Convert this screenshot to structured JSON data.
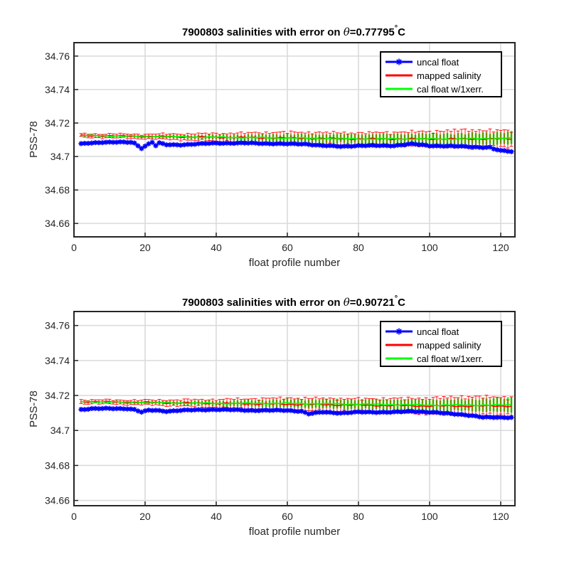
{
  "chart_data": [
    {
      "type": "line",
      "title_prefix": "7900803 salinities with error on ",
      "title_theta": "θ",
      "title_suffix": "=0.77795",
      "title_degree": "°",
      "title_unit": "C",
      "xlabel": "float profile number",
      "ylabel": "PSS-78",
      "xlim": [
        0,
        124
      ],
      "ylim": [
        34.652,
        34.768
      ],
      "xticks": [
        0,
        20,
        40,
        60,
        80,
        100,
        120
      ],
      "yticks": [
        34.66,
        34.68,
        34.7,
        34.72,
        34.74,
        34.76
      ],
      "ytick_labels": [
        "34.66",
        "34.68",
        "34.7",
        "34.72",
        "34.74",
        "34.76"
      ],
      "grid": true,
      "legend_position": "top-right",
      "series": [
        {
          "name": "uncal float",
          "color": "#0000ff",
          "marker": "asterisk",
          "x_range": [
            2,
            123
          ],
          "keypoints": [
            [
              2,
              34.7075
            ],
            [
              4,
              34.708
            ],
            [
              8,
              34.7085
            ],
            [
              12,
              34.7085
            ],
            [
              16,
              34.7085
            ],
            [
              17,
              34.708
            ],
            [
              19,
              34.705
            ],
            [
              21,
              34.7075
            ],
            [
              22,
              34.7085
            ],
            [
              23,
              34.7065
            ],
            [
              24,
              34.708
            ],
            [
              26,
              34.707
            ],
            [
              30,
              34.707
            ],
            [
              40,
              34.708
            ],
            [
              50,
              34.708
            ],
            [
              60,
              34.7075
            ],
            [
              65,
              34.7075
            ],
            [
              70,
              34.7065
            ],
            [
              75,
              34.706
            ],
            [
              80,
              34.7065
            ],
            [
              90,
              34.7065
            ],
            [
              95,
              34.7075
            ],
            [
              100,
              34.7065
            ],
            [
              110,
              34.706
            ],
            [
              115,
              34.7055
            ],
            [
              117,
              34.7055
            ],
            [
              118,
              34.7045
            ],
            [
              120,
              34.7035
            ],
            [
              123,
              34.703
            ]
          ]
        },
        {
          "name": "mapped salinity",
          "color": "#ff0000",
          "x_range": [
            2,
            123
          ],
          "keypoints": [
            [
              2,
              34.7125
            ],
            [
              20,
              34.712
            ],
            [
              40,
              34.7115
            ],
            [
              60,
              34.711
            ],
            [
              80,
              34.7105
            ],
            [
              95,
              34.7105
            ],
            [
              100,
              34.7105
            ],
            [
              110,
              34.7105
            ],
            [
              123,
              34.7105
            ]
          ],
          "error_keypoints": [
            [
              2,
              0.0012
            ],
            [
              20,
              0.0015
            ],
            [
              40,
              0.0025
            ],
            [
              60,
              0.004
            ],
            [
              80,
              0.004
            ],
            [
              100,
              0.005
            ],
            [
              110,
              0.006
            ],
            [
              123,
              0.0055
            ]
          ]
        },
        {
          "name": "cal float w/1xerr.",
          "color": "#00ff00",
          "x_range": [
            2,
            123
          ],
          "keypoints": [
            [
              2,
              34.7125
            ],
            [
              20,
              34.712
            ],
            [
              40,
              34.7115
            ],
            [
              60,
              34.711
            ],
            [
              80,
              34.7105
            ],
            [
              95,
              34.7105
            ],
            [
              100,
              34.7105
            ],
            [
              110,
              34.7105
            ],
            [
              123,
              34.711
            ]
          ],
          "error_keypoints": [
            [
              2,
              0.0005
            ],
            [
              20,
              0.0008
            ],
            [
              40,
              0.0015
            ],
            [
              60,
              0.0025
            ],
            [
              80,
              0.003
            ],
            [
              100,
              0.0035
            ],
            [
              110,
              0.0035
            ],
            [
              123,
              0.004
            ]
          ]
        }
      ]
    },
    {
      "type": "line",
      "title_prefix": "7900803 salinities with error on ",
      "title_theta": "θ",
      "title_suffix": "=0.90721",
      "title_degree": "°",
      "title_unit": "C",
      "xlabel": "float profile number",
      "ylabel": "PSS-78",
      "xlim": [
        0,
        124
      ],
      "ylim": [
        34.657,
        34.768
      ],
      "xticks": [
        0,
        20,
        40,
        60,
        80,
        100,
        120
      ],
      "yticks": [
        34.66,
        34.68,
        34.7,
        34.72,
        34.74,
        34.76
      ],
      "ytick_labels": [
        "34.66",
        "34.68",
        "34.7",
        "34.72",
        "34.74",
        "34.76"
      ],
      "grid": true,
      "legend_position": "top-right",
      "series": [
        {
          "name": "uncal float",
          "color": "#0000ff",
          "marker": "asterisk",
          "x_range": [
            2,
            123
          ],
          "keypoints": [
            [
              2,
              34.712
            ],
            [
              5,
              34.7125
            ],
            [
              10,
              34.7125
            ],
            [
              15,
              34.7125
            ],
            [
              17,
              34.712
            ],
            [
              19,
              34.7105
            ],
            [
              21,
              34.7115
            ],
            [
              23,
              34.7115
            ],
            [
              26,
              34.711
            ],
            [
              30,
              34.7115
            ],
            [
              40,
              34.712
            ],
            [
              50,
              34.7115
            ],
            [
              60,
              34.7115
            ],
            [
              64,
              34.711
            ],
            [
              66,
              34.7095
            ],
            [
              70,
              34.7105
            ],
            [
              75,
              34.71
            ],
            [
              80,
              34.7105
            ],
            [
              90,
              34.7105
            ],
            [
              95,
              34.711
            ],
            [
              100,
              34.7105
            ],
            [
              110,
              34.709
            ],
            [
              112,
              34.7085
            ],
            [
              115,
              34.7075
            ],
            [
              120,
              34.7075
            ],
            [
              123,
              34.7075
            ]
          ]
        },
        {
          "name": "mapped salinity",
          "color": "#ff0000",
          "x_range": [
            2,
            123
          ],
          "keypoints": [
            [
              2,
              34.7165
            ],
            [
              20,
              34.716
            ],
            [
              40,
              34.7155
            ],
            [
              60,
              34.715
            ],
            [
              80,
              34.7145
            ],
            [
              100,
              34.714
            ],
            [
              110,
              34.714
            ],
            [
              123,
              34.714
            ]
          ],
          "error_keypoints": [
            [
              2,
              0.0012
            ],
            [
              20,
              0.0015
            ],
            [
              40,
              0.0025
            ],
            [
              60,
              0.004
            ],
            [
              80,
              0.004
            ],
            [
              100,
              0.005
            ],
            [
              110,
              0.006
            ],
            [
              123,
              0.0055
            ]
          ]
        },
        {
          "name": "cal float w/1xerr.",
          "color": "#00ff00",
          "x_range": [
            2,
            123
          ],
          "keypoints": [
            [
              2,
              34.7165
            ],
            [
              20,
              34.716
            ],
            [
              40,
              34.7155
            ],
            [
              60,
              34.7155
            ],
            [
              80,
              34.715
            ],
            [
              100,
              34.7145
            ],
            [
              110,
              34.7145
            ],
            [
              123,
              34.7145
            ]
          ],
          "error_keypoints": [
            [
              2,
              0.0005
            ],
            [
              20,
              0.0008
            ],
            [
              40,
              0.0015
            ],
            [
              60,
              0.0025
            ],
            [
              80,
              0.003
            ],
            [
              100,
              0.0035
            ],
            [
              110,
              0.0035
            ],
            [
              123,
              0.0045
            ]
          ]
        }
      ]
    }
  ]
}
